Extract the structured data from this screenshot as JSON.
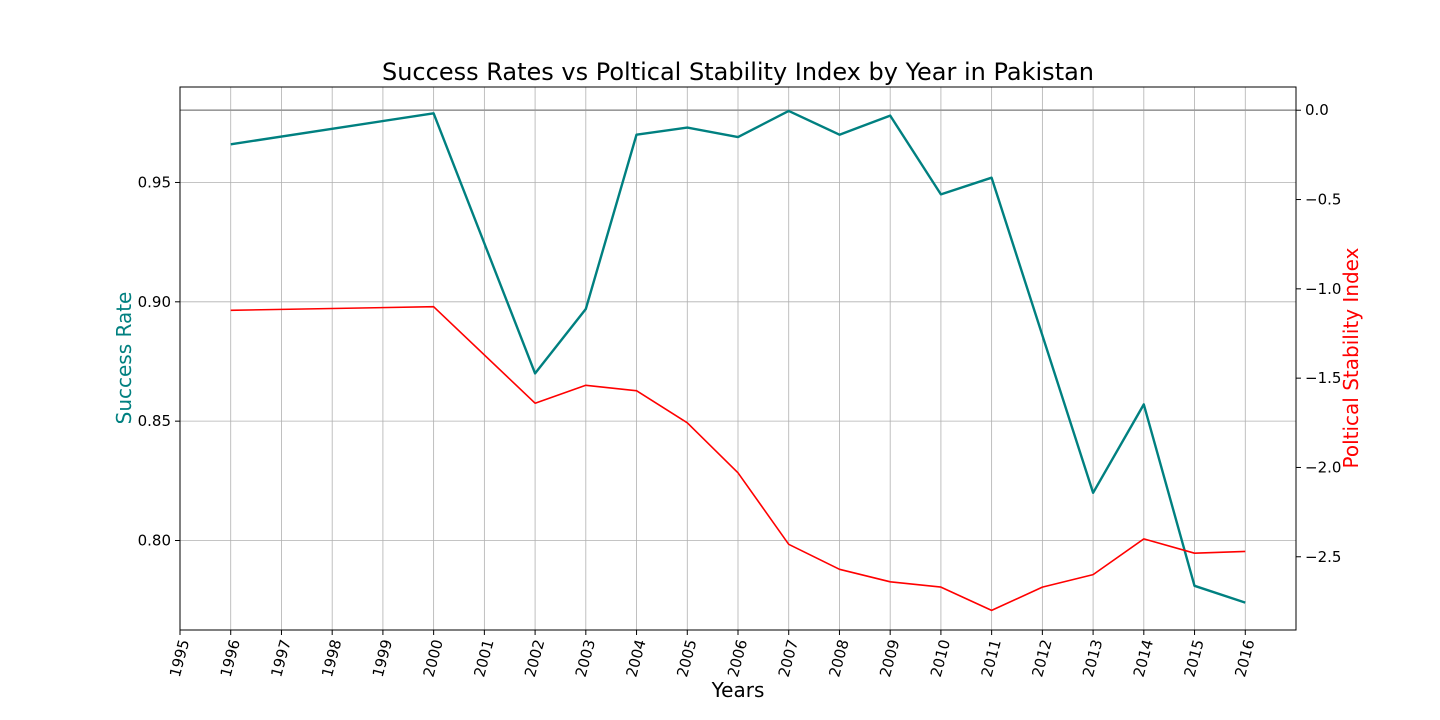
{
  "chart_data": {
    "type": "line",
    "title": "Success Rates vs Poltical Stability Index by Year in Pakistan",
    "xlabel": "Years",
    "ylabel_left": "Success Rate",
    "ylabel_right": "Poltical Stability Index",
    "xlim": [
      1995,
      2017
    ],
    "x_ticks": [
      "1995",
      "1996",
      "1997",
      "1998",
      "1999",
      "2000",
      "2001",
      "2002",
      "2003",
      "2004",
      "2005",
      "2006",
      "2007",
      "2008",
      "2009",
      "2010",
      "2011",
      "2012",
      "2013",
      "2014",
      "2015",
      "2016"
    ],
    "y_left_ticks": [
      "0.80",
      "0.85",
      "0.90",
      "0.95"
    ],
    "y_right_ticks": [
      "0.0",
      "−0.5",
      "−1.0",
      "−1.5",
      "−2.0",
      "−2.5"
    ],
    "y_left_lim": [
      0.7625,
      0.99
    ],
    "y_right_lim": [
      -2.91,
      0.13
    ],
    "grid": true,
    "colors": {
      "left_series": "#008080",
      "right_series": "#ff0000",
      "grid": "#b0b0b0",
      "reference_line": "#999999"
    },
    "reference_line_y_right": 0.0,
    "series": [
      {
        "axis": "left",
        "x": [
          1996,
          2000,
          2002,
          2003,
          2004,
          2005,
          2006,
          2007,
          2008,
          2009,
          2010,
          2011,
          2013,
          2014,
          2015,
          2016
        ],
        "values": [
          0.966,
          0.979,
          0.87,
          0.897,
          0.97,
          0.973,
          0.969,
          0.98,
          0.97,
          0.978,
          0.945,
          0.952,
          0.82,
          0.857,
          0.781,
          0.774
        ]
      },
      {
        "axis": "right",
        "x": [
          1996,
          1998,
          2000,
          2002,
          2003,
          2004,
          2005,
          2006,
          2007,
          2008,
          2009,
          2010,
          2011,
          2012,
          2013,
          2014,
          2015,
          2016
        ],
        "values": [
          -1.12,
          -1.11,
          -1.1,
          -1.64,
          -1.54,
          -1.57,
          -1.75,
          -2.03,
          -2.43,
          -2.57,
          -2.64,
          -2.67,
          -2.8,
          -2.67,
          -2.6,
          -2.4,
          -2.48,
          -2.47
        ]
      }
    ]
  }
}
